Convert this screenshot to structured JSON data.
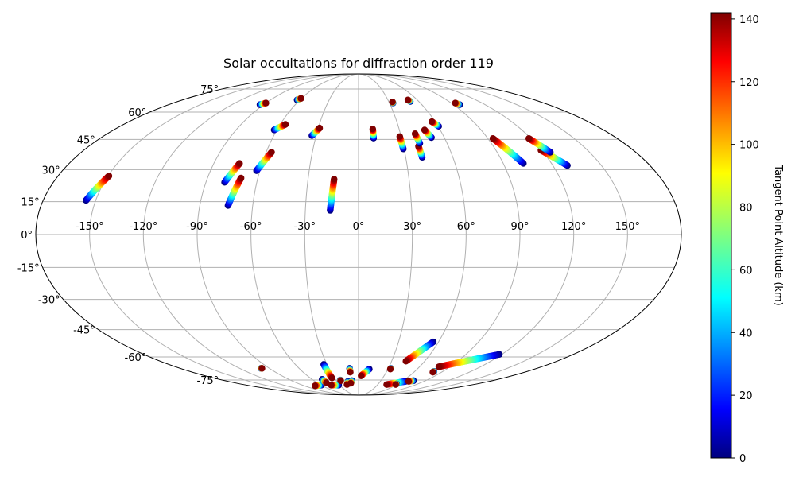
{
  "chart_data": {
    "type": "scatter",
    "projection": "mollweide",
    "title": "Solar occultations for diffraction order 119",
    "longitude_ticks": [
      -150,
      -120,
      -90,
      -60,
      -30,
      0,
      30,
      60,
      90,
      120,
      150
    ],
    "longitude_tick_labels": [
      "-150°",
      "-120°",
      "-90°",
      "-60°",
      "-30°",
      "0°",
      "30°",
      "60°",
      "90°",
      "120°",
      "150°"
    ],
    "latitude_ticks": [
      -75,
      -60,
      -45,
      -30,
      -15,
      0,
      15,
      30,
      45,
      60,
      75
    ],
    "latitude_tick_labels": [
      "-75°",
      "-60°",
      "-45°",
      "-30°",
      "-15°",
      "0°",
      "15°",
      "30°",
      "45°",
      "60°",
      "75°"
    ],
    "grid": true,
    "colorbar": {
      "label": "Tangent Point Altitude (km)",
      "colormap": "jet",
      "range": [
        0,
        142
      ],
      "ticks": [
        0,
        20,
        40,
        60,
        80,
        100,
        120,
        140
      ],
      "tick_labels": [
        "0",
        "20",
        "40",
        "60",
        "80",
        "100",
        "120",
        "140"
      ]
    },
    "occultation_tracks": [
      {
        "lon0": -155.5,
        "lat0": 15.6,
        "lon1": -149.5,
        "lat1": 27.0
      },
      {
        "lon0": -93.5,
        "lat0": 64.5,
        "lon1": -90.0,
        "lat1": 65.5
      },
      {
        "lon0": -62.8,
        "lat0": 67.5,
        "lon1": -60.5,
        "lat1": 68.5
      },
      {
        "lon0": -62.0,
        "lat0": 50.0,
        "lon1": -56.0,
        "lat1": 53.0
      },
      {
        "lon0": -79.0,
        "lat0": 24.0,
        "lon1": -74.0,
        "lat1": 33.0
      },
      {
        "lon0": -74.0,
        "lat0": 13.2,
        "lon1": -70.0,
        "lat1": 26.0
      },
      {
        "lon0": -62.0,
        "lat0": 29.5,
        "lon1": -56.5,
        "lat1": 38.5
      },
      {
        "lon0": -33.0,
        "lat0": 47.0,
        "lon1": -29.0,
        "lat1": 51.0
      },
      {
        "lon0": -16.0,
        "lat0": 11.0,
        "lon1": -14.5,
        "lat1": 25.5
      },
      {
        "lon0": 10.5,
        "lat0": 45.7,
        "lon1": 10.5,
        "lat1": 50.5
      },
      {
        "lon0": 29.5,
        "lat0": 40.2,
        "lon1": 29.0,
        "lat1": 46.5
      },
      {
        "lon0": 33.5,
        "lat0": 65.5,
        "lon1": 33.5,
        "lat1": 66.2
      },
      {
        "lon0": 40.5,
        "lat0": 36.0,
        "lon1": 40.0,
        "lat1": 41.5
      },
      {
        "lon0": 41.5,
        "lat0": 43.0,
        "lon1": 40.5,
        "lat1": 48.0
      },
      {
        "lon0": 51.0,
        "lat0": 46.0,
        "lon1": 48.5,
        "lat1": 50.0
      },
      {
        "lon0": 51.5,
        "lat0": 66.5,
        "lon1": 50.5,
        "lat1": 67.5
      },
      {
        "lon0": 60.5,
        "lat0": 52.0,
        "lon1": 57.5,
        "lat1": 54.5
      },
      {
        "lon0": 96.0,
        "lat0": 64.5,
        "lon1": 94.0,
        "lat1": 65.5
      },
      {
        "lon0": 102.5,
        "lat0": 33.0,
        "lon1": 93.5,
        "lat1": 45.5
      },
      {
        "lon0": 129.0,
        "lat0": 32.0,
        "lon1": 119.5,
        "lat1": 39.5
      },
      {
        "lon0": 124.5,
        "lat0": 38.5,
        "lon1": 118.5,
        "lat1": 45.5
      },
      {
        "lon0": -98.5,
        "lat0": -67.0,
        "lon1": -97.5,
        "lat1": -67.0
      },
      {
        "lon0": -60.0,
        "lat0": -79.0,
        "lon1": -72.0,
        "lat1": -79.5
      },
      {
        "lon0": -47.0,
        "lat0": -74.5,
        "lon1": -46.5,
        "lat1": -77.0
      },
      {
        "lon0": -32.0,
        "lat0": -79.0,
        "lon1": -44.0,
        "lat1": -79.0
      },
      {
        "lon0": -33.0,
        "lat0": -64.5,
        "lon1": -33.0,
        "lat1": -73.5
      },
      {
        "lon0": -24.0,
        "lat0": -75.0,
        "lon1": -24.0,
        "lat1": -75.5
      },
      {
        "lon0": -14.5,
        "lat0": -76.0,
        "lon1": -18.0,
        "lat1": -78.5
      },
      {
        "lon0": -9.0,
        "lat0": -67.0,
        "lon1": -9.0,
        "lat1": -69.5
      },
      {
        "lon0": -9.0,
        "lat0": -75.5,
        "lon1": -11.5,
        "lat1": -77.5
      },
      {
        "lon0": 11.0,
        "lat0": -67.5,
        "lon1": 3.0,
        "lat1": -72.0
      },
      {
        "lon0": 32.5,
        "lat0": -67.0,
        "lon1": 32.5,
        "lat1": -67.5
      },
      {
        "lon0": 65.0,
        "lat0": -76.0,
        "lon1": 44.0,
        "lat1": -78.5
      },
      {
        "lon0": 58.0,
        "lat0": -78.0,
        "lon1": 58.0,
        "lat1": -78.5
      },
      {
        "lon0": 56.0,
        "lat0": -51.5,
        "lon1": 43.0,
        "lat1": -62.5
      },
      {
        "lon0": 74.0,
        "lat0": -75.5,
        "lon1": 69.0,
        "lat1": -76.0
      },
      {
        "lon0": 80.5,
        "lat0": -69.0,
        "lon1": 80.5,
        "lat1": -69.5
      },
      {
        "lon0": 118.0,
        "lat0": -58.5,
        "lon1": 79.0,
        "lat1": -66.0
      }
    ]
  }
}
